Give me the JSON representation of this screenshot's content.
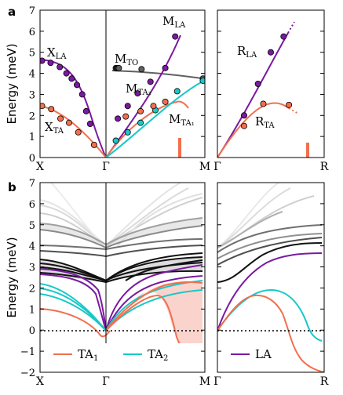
{
  "figure": {
    "panel_a_label": "a",
    "panel_b_label": "b",
    "ylabel": "Energy (meV)"
  },
  "chart_data": [
    {
      "id": "a-left",
      "type": "line",
      "ylabel": "Energy (meV)",
      "ylim": [
        0,
        7
      ],
      "yticks": [
        0,
        1,
        2,
        3,
        4,
        5,
        6,
        7
      ],
      "xticks": [
        "X",
        "Γ",
        "M"
      ],
      "labels": [
        {
          "main": "X",
          "sub": "LA",
          "color": "#7a1aa0"
        },
        {
          "main": "X",
          "sub": "TA",
          "color": "#f0704e"
        },
        {
          "main": "M",
          "sub": "TO",
          "color": "#606060"
        },
        {
          "main": "M",
          "sub": "LA",
          "color": "#7a1aa0"
        },
        {
          "main": "M",
          "sub": "TA₂",
          "color": "#18c8c8"
        },
        {
          "main": "M",
          "sub": "TA₁",
          "color": "#f0704e"
        }
      ],
      "series": [
        {
          "key": "X_LA",
          "color": "#7a1aa0",
          "x": [
            -0.97,
            -0.84,
            -0.7,
            -0.6,
            -0.52,
            -0.44,
            -0.36,
            -0.3,
            -0.24
          ],
          "y": [
            4.6,
            4.5,
            4.3,
            4.0,
            3.75,
            3.45,
            3.0,
            2.2,
            1.6
          ]
        },
        {
          "key": "X_TA",
          "color": "#f0704e",
          "x": [
            -0.97,
            -0.83,
            -0.69,
            -0.56,
            -0.42,
            -0.18
          ],
          "y": [
            2.45,
            2.3,
            1.85,
            1.65,
            1.2,
            0.6
          ]
        },
        {
          "key": "M_TO",
          "color": "#606060",
          "x": [
            0.1,
            0.11,
            0.12,
            0.13,
            0.36,
            0.98
          ],
          "y": [
            4.25,
            4.25,
            4.25,
            4.25,
            4.2,
            3.75
          ]
        },
        {
          "key": "M_LA",
          "color": "#7a1aa0",
          "x": [
            0.12,
            0.22,
            0.32,
            0.45,
            0.6,
            0.7
          ],
          "y": [
            1.85,
            2.45,
            3.05,
            3.6,
            4.25,
            5.75
          ]
        },
        {
          "key": "M_TA2",
          "color": "#18c8c8",
          "x": [
            0.1,
            0.22,
            0.35,
            0.5,
            0.72,
            0.98
          ],
          "y": [
            0.8,
            1.2,
            1.65,
            2.25,
            3.15,
            3.65
          ]
        },
        {
          "key": "M_TA1",
          "color": "#f0704e",
          "x": [
            0.2,
            0.35,
            0.48,
            0.6
          ],
          "y": [
            1.95,
            2.2,
            2.45,
            2.65
          ]
        }
      ]
    },
    {
      "id": "a-right",
      "type": "line",
      "ylim": [
        0,
        7
      ],
      "xticks": [
        "Γ",
        "R"
      ],
      "labels": [
        {
          "main": "R",
          "sub": "LA",
          "color": "#7a1aa0"
        },
        {
          "main": "R",
          "sub": "TA",
          "color": "#f0704e"
        }
      ],
      "series": [
        {
          "key": "R_LA",
          "color": "#7a1aa0",
          "x": [
            0.25,
            0.38,
            0.5,
            0.62
          ],
          "y": [
            2.0,
            3.5,
            5.0,
            5.75
          ]
        },
        {
          "key": "R_TA",
          "color": "#f0704e",
          "x": [
            0.25,
            0.43,
            0.67
          ],
          "y": [
            1.5,
            2.55,
            2.5
          ]
        }
      ]
    },
    {
      "id": "b-left",
      "type": "line",
      "ylabel": "Energy (meV)",
      "ylim": [
        -2,
        7
      ],
      "yticks": [
        -2,
        -1,
        0,
        1,
        2,
        3,
        4,
        5,
        6,
        7
      ],
      "xticks": [
        "X",
        "Γ",
        "M"
      ],
      "legend": {
        "placement": "bottom",
        "entries": [
          {
            "main": "TA",
            "sub": "1",
            "color": "#f0704e"
          },
          {
            "main": "TA",
            "sub": "2",
            "color": "#18c8c8"
          },
          {
            "main": "LA",
            "sub": "",
            "color": "#7a1aa0"
          }
        ]
      }
    },
    {
      "id": "b-right",
      "type": "line",
      "ylim": [
        -2,
        7
      ],
      "xticks": [
        "Γ",
        "R"
      ]
    }
  ]
}
